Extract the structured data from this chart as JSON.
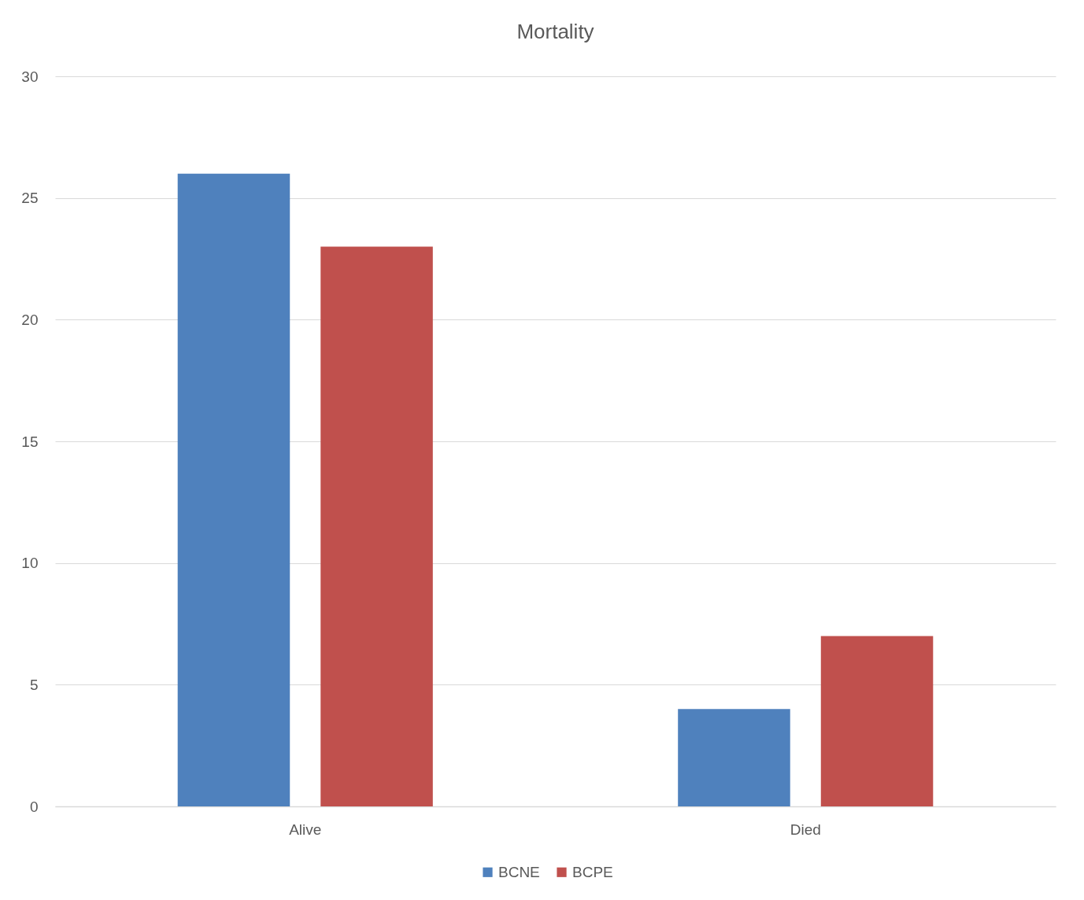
{
  "chart_data": {
    "type": "bar",
    "title": "Mortality",
    "categories": [
      "Alive",
      "Died"
    ],
    "series": [
      {
        "name": "BCNE",
        "color": "#4f81bd",
        "values": [
          26,
          4
        ]
      },
      {
        "name": "BCPE",
        "color": "#c0504d",
        "values": [
          23,
          7
        ]
      }
    ],
    "ylim": [
      0,
      30
    ],
    "yticks": [
      0,
      5,
      10,
      15,
      20,
      25,
      30
    ],
    "grid": "y",
    "legend": "bottom"
  }
}
